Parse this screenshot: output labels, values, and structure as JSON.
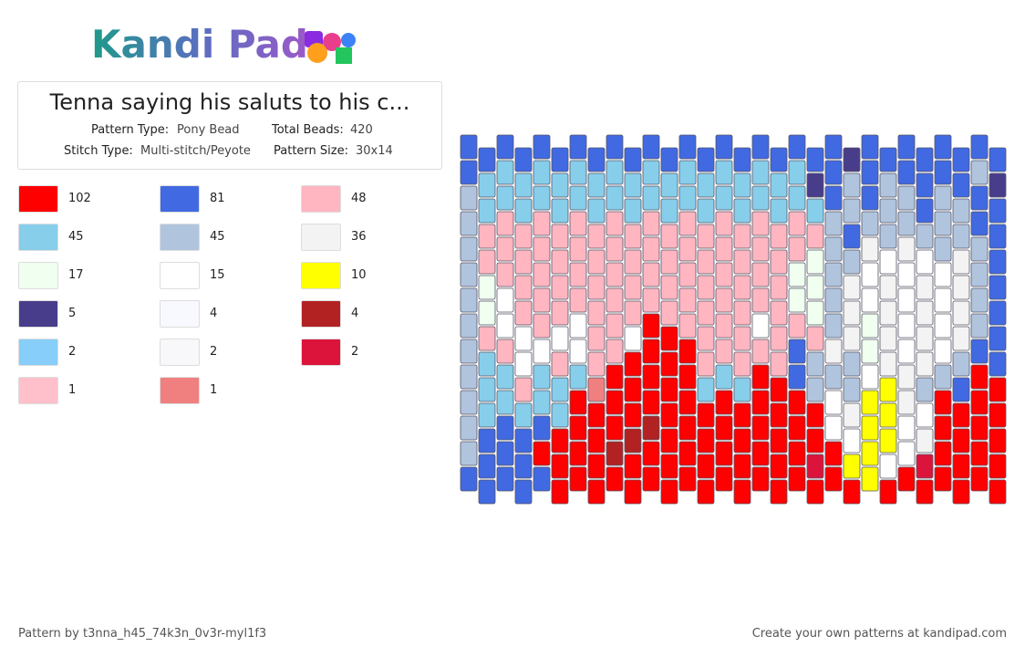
{
  "logo": {
    "text": "Kandi Pad"
  },
  "header": {
    "title": "Tenna saying his saluts to his c...",
    "fields": [
      {
        "label": "Pattern Type:",
        "value": "Pony Bead"
      },
      {
        "label": "Total Beads:",
        "value": "420"
      },
      {
        "label": "Stitch Type:",
        "value": "Multi-stitch/Peyote"
      },
      {
        "label": "Pattern Size:",
        "value": "30x14"
      }
    ]
  },
  "legend": [
    {
      "color": "#ff0000",
      "count": "102"
    },
    {
      "color": "#4169e1",
      "count": "81"
    },
    {
      "color": "#ffb6c1",
      "count": "48"
    },
    {
      "color": "#87ceeb",
      "count": "45"
    },
    {
      "color": "#b0c4de",
      "count": "45"
    },
    {
      "color": "#f3f3f3",
      "count": "36"
    },
    {
      "color": "#f0fff0",
      "count": "17"
    },
    {
      "color": "#ffffff",
      "count": "15"
    },
    {
      "color": "#ffff00",
      "count": "10"
    },
    {
      "color": "#483d8b",
      "count": "5"
    },
    {
      "color": "#f8f8ff",
      "count": "4"
    },
    {
      "color": "#b22222",
      "count": "4"
    },
    {
      "color": "#87cefa",
      "count": "2"
    },
    {
      "color": "#f8f8fa",
      "count": "2"
    },
    {
      "color": "#dc143c",
      "count": "2"
    },
    {
      "color": "#ffc0cb",
      "count": "1"
    },
    {
      "color": "#f08080",
      "count": "1"
    }
  ],
  "footer": {
    "author": "Pattern by t3nna_h45_74k3n_0v3r-myl1f3",
    "link": "Create your own patterns at kandipad.com"
  }
}
